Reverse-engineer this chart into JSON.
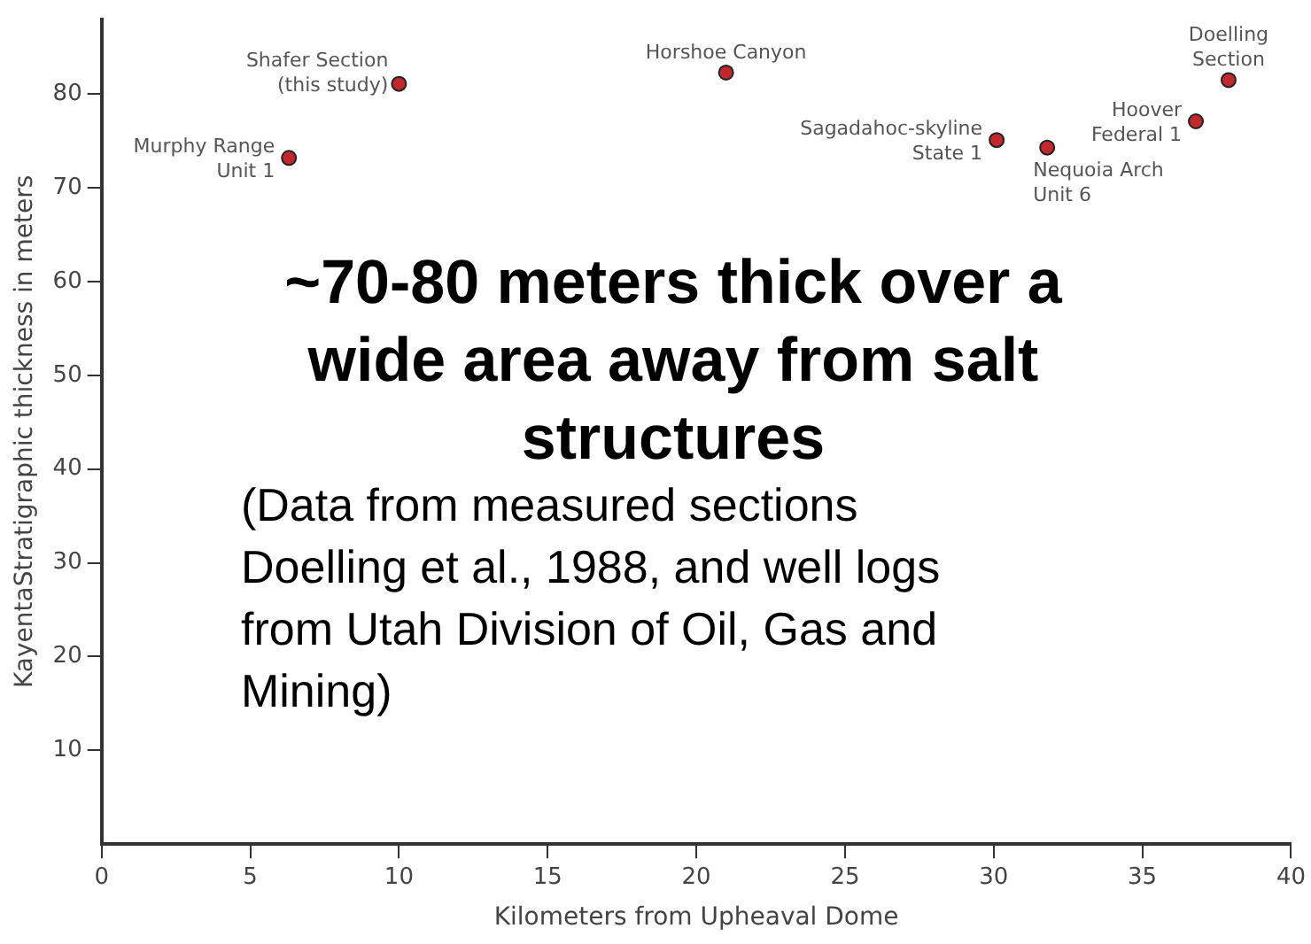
{
  "chart_data": {
    "type": "scatter",
    "xlabel": "Kilometers from Upheaval Dome",
    "ylabel": "KayentaStratigraphic thickness in meters",
    "x": [
      6.3,
      10.0,
      21.0,
      30.1,
      31.8,
      36.8,
      37.9
    ],
    "values": [
      73.2,
      81.1,
      82.3,
      75.1,
      74.3,
      77.1,
      81.5
    ],
    "color": "#c0282d",
    "marker": "circle",
    "grid": false,
    "legend": false,
    "xlim": [
      0,
      40
    ],
    "xticks": [
      0,
      5,
      10,
      15,
      20,
      25,
      30,
      35,
      40
    ],
    "ylim": [
      0,
      88
    ],
    "yticks": [
      10,
      20,
      30,
      40,
      50,
      60,
      70,
      80
    ],
    "annotations": [
      {
        "text": "Murphy Range\nUnit 1",
        "x": 6.3,
        "y": 73.2
      },
      {
        "text": "Shafer Section\n(this study)",
        "x": 10.0,
        "y": 81.1
      },
      {
        "text": "Horshoe Canyon",
        "x": 21.0,
        "y": 82.3
      },
      {
        "text": "Sagadahoc-skyline\nState 1",
        "x": 30.1,
        "y": 75.1
      },
      {
        "text": "Nequoia Arch\nUnit 6",
        "x": 31.8,
        "y": 74.3
      },
      {
        "text": "Hoover\nFederal 1",
        "x": 36.8,
        "y": 77.1
      },
      {
        "text": "Doelling\nSection",
        "x": 37.9,
        "y": 81.5
      },
      "~70-80 meters thick over a wide area away from salt structures",
      "(Data from measured sections Doelling et al., 1988, and well logs from Utah Division of Oil, Gas and Mining)"
    ]
  }
}
